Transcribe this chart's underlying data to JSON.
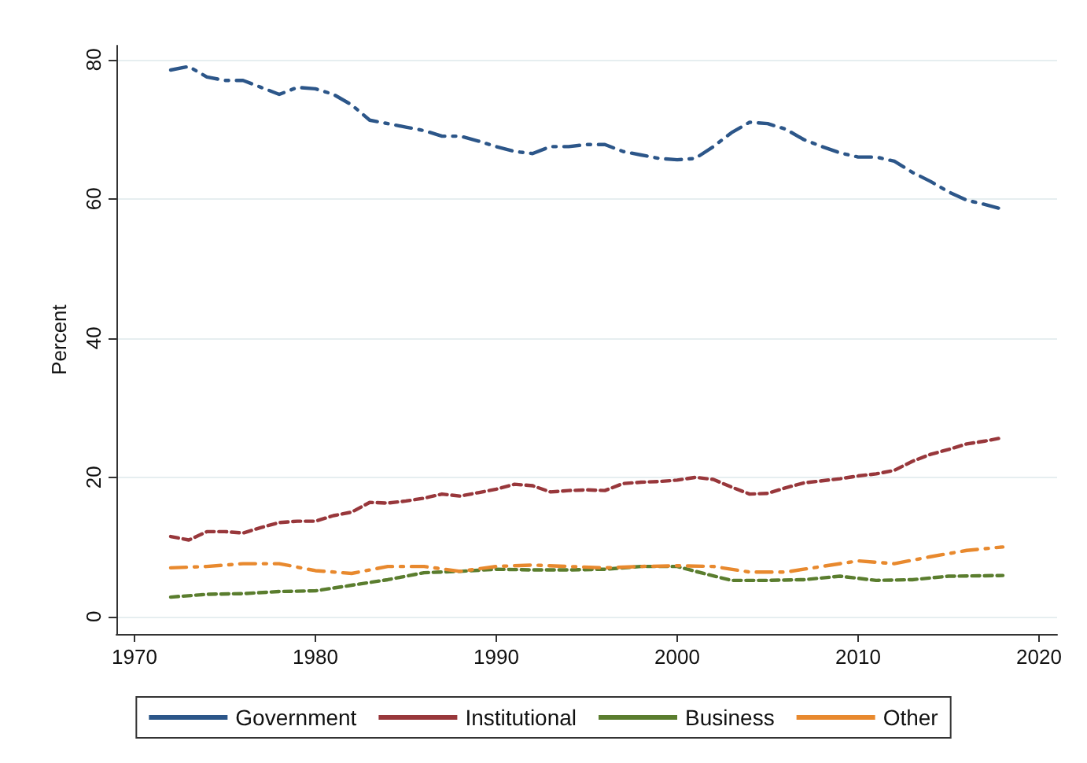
{
  "chart_data": {
    "type": "line",
    "ylabel": "Percent",
    "xlim": [
      1969,
      2021
    ],
    "xticks": [
      1970,
      1980,
      1990,
      2000,
      2010,
      2020
    ],
    "ylim": [
      -2.5,
      82
    ],
    "yticks": [
      0,
      20,
      40,
      60,
      80
    ],
    "grid": "y",
    "legend": "bottom",
    "marker": "none",
    "series": [
      {
        "name": "Government",
        "color": "#2c5689",
        "line_style": "dashdot",
        "x": [
          1972,
          1973,
          1974,
          1975,
          1976,
          1977,
          1978,
          1979,
          1980,
          1981,
          1982,
          1983,
          1984,
          1985,
          1986,
          1987,
          1988,
          1989,
          1990,
          1991,
          1992,
          1993,
          1994,
          1995,
          1996,
          1997,
          1998,
          1999,
          2000,
          2001,
          2002,
          2003,
          2004,
          2005,
          2006,
          2007,
          2008,
          2009,
          2010,
          2011,
          2012,
          2013,
          2014,
          2015,
          2016,
          2017,
          2018
        ],
        "values": [
          78.5,
          79,
          77.5,
          77,
          77,
          76,
          75,
          76,
          75.8,
          75,
          73.5,
          71.3,
          70.8,
          70.3,
          69.8,
          69,
          69,
          68.3,
          67.5,
          66.8,
          66.5,
          67.5,
          67.5,
          67.8,
          67.8,
          66.8,
          66.3,
          65.8,
          65.6,
          65.8,
          67.5,
          69.5,
          71,
          70.8,
          70,
          68.5,
          67.5,
          66.6,
          66,
          66,
          65.4,
          63.8,
          62.5,
          61,
          59.8,
          59.2,
          58.5
        ]
      },
      {
        "name": "Institutional",
        "color": "#98373b",
        "line_style": "dashed",
        "x": [
          1972,
          1973,
          1974,
          1975,
          1976,
          1977,
          1978,
          1979,
          1980,
          1981,
          1982,
          1983,
          1984,
          1985,
          1986,
          1987,
          1988,
          1989,
          1990,
          1991,
          1992,
          1993,
          1994,
          1995,
          1996,
          1997,
          1998,
          1999,
          2000,
          2001,
          2002,
          2003,
          2004,
          2005,
          2006,
          2007,
          2008,
          2009,
          2010,
          2011,
          2012,
          2013,
          2014,
          2015,
          2016,
          2017,
          2018
        ],
        "values": [
          11.5,
          11,
          12.2,
          12.2,
          12,
          12.8,
          13.5,
          13.7,
          13.7,
          14.5,
          15,
          16.4,
          16.3,
          16.6,
          17,
          17.6,
          17.3,
          17.8,
          18.3,
          19,
          18.8,
          17.9,
          18.1,
          18.2,
          18.1,
          19.1,
          19.3,
          19.4,
          19.6,
          20,
          19.7,
          18.6,
          17.6,
          17.7,
          18.5,
          19.2,
          19.5,
          19.8,
          20.2,
          20.5,
          21,
          22.3,
          23.3,
          24,
          24.8,
          25.2,
          25.7
        ]
      },
      {
        "name": "Business",
        "color": "#5a7d2e",
        "line_style": "dashed",
        "x": [
          1972,
          1974,
          1976,
          1978,
          1980,
          1982,
          1984,
          1986,
          1988,
          1990,
          1992,
          1994,
          1996,
          1998,
          2000,
          2001,
          2003,
          2005,
          2007,
          2009,
          2011,
          2013,
          2015,
          2018
        ],
        "values": [
          2.8,
          3.2,
          3.3,
          3.6,
          3.7,
          4.5,
          5.3,
          6.3,
          6.5,
          6.8,
          6.7,
          6.7,
          6.8,
          7.2,
          7.2,
          6.5,
          5.2,
          5.2,
          5.3,
          5.8,
          5.2,
          5.3,
          5.8,
          5.9
        ]
      },
      {
        "name": "Other",
        "color": "#e8892e",
        "line_style": "dashdot",
        "x": [
          1972,
          1974,
          1976,
          1978,
          1980,
          1982,
          1984,
          1986,
          1988,
          1990,
          1992,
          1994,
          1996,
          1998,
          2000,
          2002,
          2004,
          2006,
          2008,
          2010,
          2012,
          2014,
          2016,
          2018
        ],
        "values": [
          7,
          7.2,
          7.6,
          7.6,
          6.6,
          6.2,
          7.2,
          7.2,
          6.5,
          7.2,
          7.4,
          7.2,
          7,
          7.2,
          7.3,
          7.2,
          6.4,
          6.4,
          7.2,
          8,
          7.6,
          8.6,
          9.5,
          10
        ]
      }
    ]
  }
}
